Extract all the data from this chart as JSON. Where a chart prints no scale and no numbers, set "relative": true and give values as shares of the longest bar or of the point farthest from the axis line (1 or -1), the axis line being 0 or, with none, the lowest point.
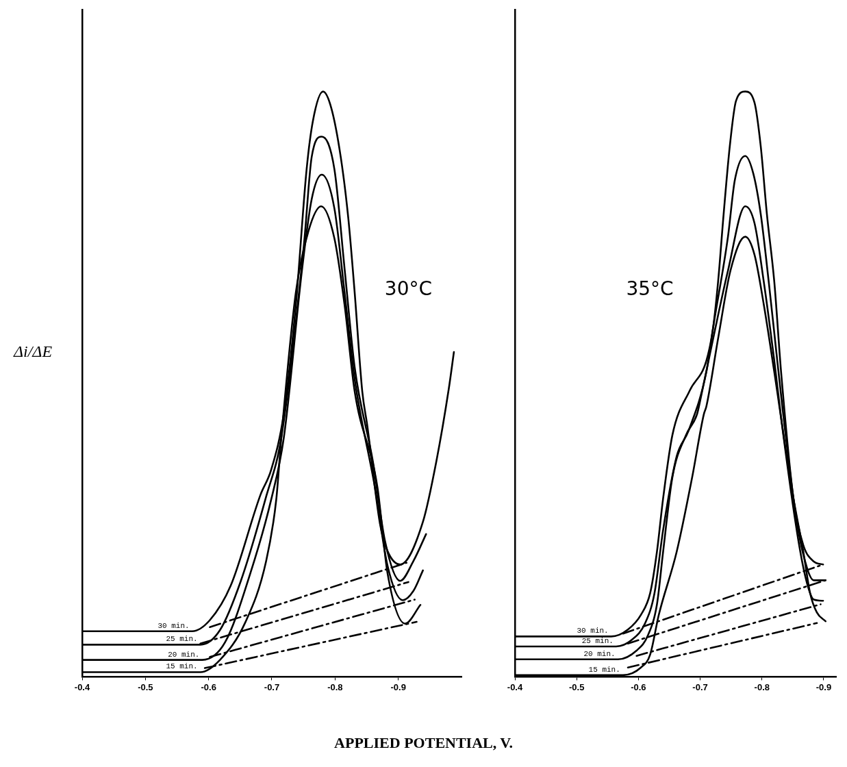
{
  "chart_data": [
    {
      "type": "line",
      "relative": true,
      "ylabel": "Δi/ΔE",
      "xlabel": "APPLIED POTENTIAL, V.",
      "annotations": [
        "30°C"
      ],
      "xlim": [
        -0.4,
        -1.0
      ],
      "xticks": [
        -0.4,
        -0.5,
        -0.6,
        -0.7,
        -0.8,
        -0.9
      ],
      "marker": "none",
      "line_style": "solid",
      "series": [
        {
          "name": "30 min.",
          "color": "#000000",
          "x": [
            -0.4,
            -0.574,
            -0.602,
            -0.635,
            -0.682,
            -0.699,
            -0.719,
            -0.738,
            -0.755,
            -0.765,
            -0.781,
            -0.794,
            -0.809,
            -0.821,
            -0.831,
            -0.843,
            -0.851,
            -0.871,
            -0.883,
            -0.903,
            -0.939,
            -0.96,
            -0.98,
            -0.988
          ],
          "values": [
            0.078,
            0.078,
            0.097,
            0.156,
            0.311,
            0.354,
            0.45,
            0.636,
            0.867,
            0.95,
            1.0,
            0.972,
            0.888,
            0.783,
            0.657,
            0.488,
            0.429,
            0.262,
            0.215,
            0.192,
            0.265,
            0.367,
            0.493,
            0.555
          ]
        },
        {
          "name": "25 min.",
          "color": "#000000",
          "x": [
            -0.4,
            -0.587,
            -0.618,
            -0.651,
            -0.691,
            -0.715,
            -0.751,
            -0.763,
            -0.779,
            -0.799,
            -0.815,
            -0.831,
            -0.86,
            -0.879,
            -0.903,
            -0.924,
            -0.944
          ],
          "values": [
            0.055,
            0.055,
            0.08,
            0.164,
            0.308,
            0.409,
            0.741,
            0.888,
            0.923,
            0.867,
            0.698,
            0.529,
            0.367,
            0.232,
            0.164,
            0.198,
            0.244
          ]
        },
        {
          "name": "20 min.",
          "color": "#000000",
          "x": [
            -0.4,
            -0.59,
            -0.626,
            -0.666,
            -0.699,
            -0.719,
            -0.748,
            -0.763,
            -0.779,
            -0.799,
            -0.815,
            -0.831,
            -0.863,
            -0.883,
            -0.907,
            -0.924,
            -0.939
          ],
          "values": [
            0.029,
            0.029,
            0.059,
            0.177,
            0.303,
            0.409,
            0.698,
            0.816,
            0.858,
            0.8,
            0.657,
            0.509,
            0.324,
            0.19,
            0.131,
            0.147,
            0.182
          ]
        },
        {
          "name": "15 min.",
          "color": "#000000",
          "x": [
            -0.4,
            -0.587,
            -0.618,
            -0.658,
            -0.691,
            -0.707,
            -0.715,
            -0.738,
            -0.758,
            -0.778,
            -0.799,
            -0.815,
            -0.831,
            -0.867,
            -0.883,
            -0.911,
            -0.935
          ],
          "values": [
            0.008,
            0.008,
            0.029,
            0.093,
            0.198,
            0.303,
            0.409,
            0.657,
            0.762,
            0.804,
            0.749,
            0.636,
            0.488,
            0.324,
            0.177,
            0.091,
            0.123
          ]
        },
        {
          "type": "line",
          "line_style": "dashed",
          "color": "#000000",
          "x": [
            -0.602,
            -0.913
          ],
          "values": [
            0.085,
            0.195
          ]
        },
        {
          "type": "line",
          "line_style": "dashed",
          "color": "#000000",
          "x": [
            -0.587,
            -0.916
          ],
          "values": [
            0.057,
            0.162
          ]
        },
        {
          "type": "line",
          "line_style": "dashed",
          "color": "#000000",
          "x": [
            -0.602,
            -0.926
          ],
          "values": [
            0.034,
            0.132
          ]
        },
        {
          "type": "line",
          "line_style": "dashed",
          "color": "#000000",
          "x": [
            -0.594,
            -0.929
          ],
          "values": [
            0.015,
            0.094
          ]
        }
      ]
    },
    {
      "type": "line",
      "relative": true,
      "annotations": [
        "35°C"
      ],
      "xlim": [
        -0.4,
        -0.92
      ],
      "xticks": [
        -0.4,
        -0.5,
        -0.6,
        -0.7,
        -0.8,
        -0.9
      ],
      "marker": "none",
      "line_style": "solid",
      "series": [
        {
          "name": "30 min.",
          "color": "#000000",
          "x": [
            -0.4,
            -0.556,
            -0.583,
            -0.604,
            -0.619,
            -0.63,
            -0.64,
            -0.655,
            -0.683,
            -0.71,
            -0.721,
            -0.729,
            -0.738,
            -0.748,
            -0.758,
            -0.773,
            -0.788,
            -0.798,
            -0.808,
            -0.82,
            -0.831,
            -0.851,
            -0.867,
            -0.884,
            -0.899
          ],
          "values": [
            0.069,
            0.069,
            0.081,
            0.106,
            0.143,
            0.214,
            0.305,
            0.413,
            0.489,
            0.54,
            0.597,
            0.675,
            0.791,
            0.907,
            0.984,
            1.0,
            0.981,
            0.907,
            0.791,
            0.675,
            0.521,
            0.305,
            0.225,
            0.197,
            0.192
          ]
        },
        {
          "name": "25 min.",
          "color": "#000000",
          "x": [
            -0.4,
            -0.564,
            -0.589,
            -0.611,
            -0.626,
            -0.64,
            -0.662,
            -0.681,
            -0.71,
            -0.721,
            -0.745,
            -0.756,
            -0.773,
            -0.786,
            -0.798,
            -0.811,
            -0.823,
            -0.833,
            -0.856,
            -0.873,
            -0.884,
            -0.903
          ],
          "values": [
            0.052,
            0.052,
            0.063,
            0.092,
            0.143,
            0.251,
            0.377,
            0.42,
            0.521,
            0.597,
            0.752,
            0.848,
            0.89,
            0.86,
            0.791,
            0.675,
            0.558,
            0.462,
            0.268,
            0.186,
            0.165,
            0.165
          ]
        },
        {
          "name": "20 min.",
          "color": "#000000",
          "x": [
            -0.4,
            -0.567,
            -0.597,
            -0.615,
            -0.63,
            -0.64,
            -0.655,
            -0.677,
            -0.695,
            -0.702,
            -0.721,
            -0.745,
            -0.773,
            -0.788,
            -0.803,
            -0.82,
            -0.831,
            -0.859,
            -0.873,
            -0.884,
            -0.899
          ],
          "values": [
            0.03,
            0.03,
            0.045,
            0.07,
            0.124,
            0.214,
            0.341,
            0.413,
            0.449,
            0.482,
            0.578,
            0.694,
            0.804,
            0.775,
            0.675,
            0.54,
            0.443,
            0.233,
            0.16,
            0.132,
            0.13
          ]
        },
        {
          "name": "15 min.",
          "color": "#000000",
          "x": [
            -0.4,
            -0.575,
            -0.604,
            -0.619,
            -0.633,
            -0.662,
            -0.687,
            -0.706,
            -0.71,
            -0.729,
            -0.749,
            -0.773,
            -0.788,
            -0.803,
            -0.82,
            -0.848,
            -0.867,
            -0.878,
            -0.889,
            -0.903
          ],
          "values": [
            0.003,
            0.003,
            0.016,
            0.038,
            0.106,
            0.214,
            0.341,
            0.449,
            0.462,
            0.578,
            0.694,
            0.752,
            0.721,
            0.636,
            0.521,
            0.323,
            0.214,
            0.143,
            0.11,
            0.095
          ]
        },
        {
          "type": "line",
          "line_style": "dashed",
          "color": "#000000",
          "x": [
            -0.575,
            -0.899
          ],
          "values": [
            0.074,
            0.192
          ]
        },
        {
          "type": "line",
          "line_style": "dashed",
          "color": "#000000",
          "x": [
            -0.583,
            -0.903
          ],
          "values": [
            0.057,
            0.165
          ]
        },
        {
          "type": "line",
          "line_style": "dashed",
          "color": "#000000",
          "x": [
            -0.597,
            -0.895
          ],
          "values": [
            0.036,
            0.124
          ]
        },
        {
          "type": "line",
          "line_style": "dashed",
          "color": "#000000",
          "x": [
            -0.583,
            -0.889
          ],
          "values": [
            0.016,
            0.092
          ]
        }
      ]
    }
  ]
}
